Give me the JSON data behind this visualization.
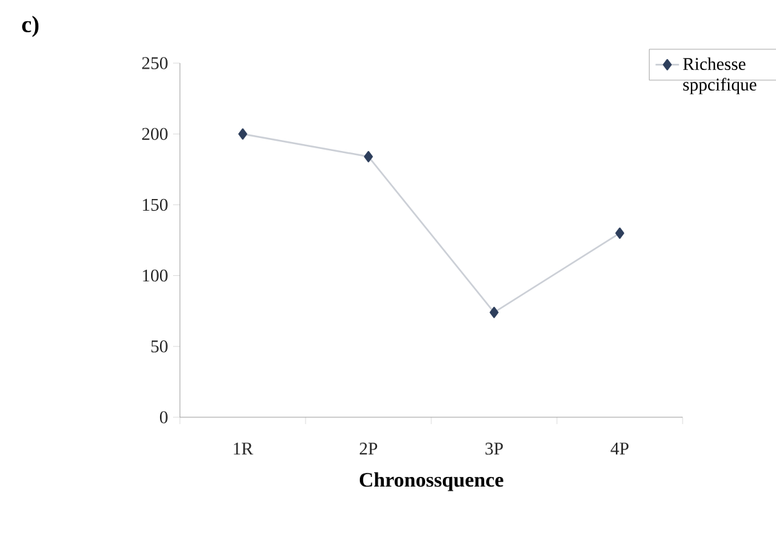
{
  "chart_data": {
    "type": "line",
    "categories": [
      "1R",
      "2P",
      "3P",
      "4P"
    ],
    "series": [
      {
        "name": "Richesse sppcifique",
        "color": "#2e3f5c",
        "values": [
          200,
          184,
          74,
          130
        ]
      }
    ],
    "xlabel": "Chronossquence",
    "annotations": [
      "c)"
    ],
    "ylim": [
      0,
      250
    ],
    "yticks": [
      0,
      50,
      100,
      150,
      200,
      250
    ],
    "marker": "diamond",
    "line_style": "solid",
    "legend": "top right",
    "grid": false
  }
}
